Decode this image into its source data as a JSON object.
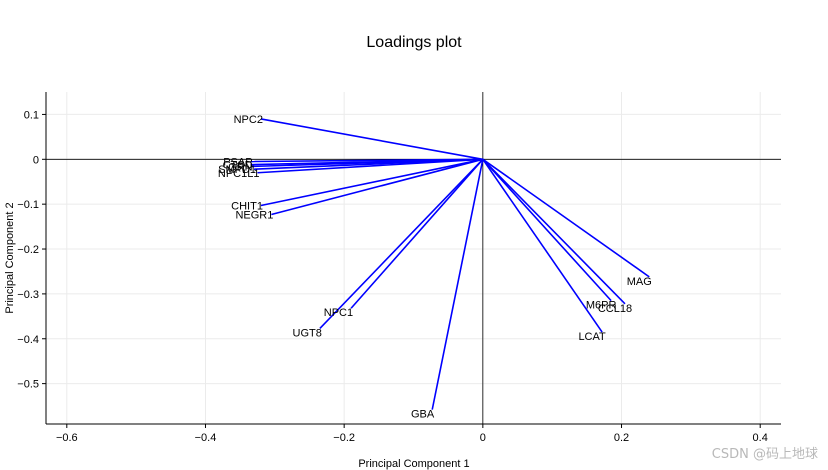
{
  "chart_data": {
    "type": "loadings",
    "title": "Loadings plot",
    "xlabel": "Principal Component 1",
    "ylabel": "Principal Component 2",
    "xlim": [
      -0.63,
      0.43
    ],
    "ylim": [
      -0.59,
      0.15
    ],
    "xticks": [
      -0.6,
      -0.4,
      -0.2,
      0,
      0.2,
      0.4
    ],
    "xtick_labels": [
      "−0.6",
      "−0.4",
      "−0.2",
      "0",
      "0.2",
      "0.4"
    ],
    "yticks": [
      0.1,
      0,
      -0.1,
      -0.2,
      -0.3,
      -0.4,
      -0.5
    ],
    "ytick_labels": [
      "0.1",
      "0",
      "−0.1",
      "−0.2",
      "−0.3",
      "−0.4",
      "−0.5"
    ],
    "grid": true,
    "color": "#0000ff",
    "vectors": [
      {
        "label": "NPC2",
        "x": -0.32,
        "y": 0.09
      },
      {
        "label": "PSAP",
        "x": -0.335,
        "y": -0.005
      },
      {
        "label": "CTSD",
        "x": -0.335,
        "y": -0.012
      },
      {
        "label": "GRN",
        "x": -0.335,
        "y": -0.016
      },
      {
        "label": "SMPD1",
        "x": -0.33,
        "y": -0.022
      },
      {
        "label": "NPC1L1",
        "x": -0.325,
        "y": -0.03
      },
      {
        "label": "CHIT1",
        "x": -0.32,
        "y": -0.103
      },
      {
        "label": "NEGR1",
        "x": -0.305,
        "y": -0.123
      },
      {
        "label": "NPC1",
        "x": -0.19,
        "y": -0.332
      },
      {
        "label": "UGT8",
        "x": -0.235,
        "y": -0.377
      },
      {
        "label": "GBA",
        "x": -0.073,
        "y": -0.558
      },
      {
        "label": "MAG",
        "x": 0.24,
        "y": -0.262
      },
      {
        "label": "CCL18",
        "x": 0.205,
        "y": -0.322
      },
      {
        "label": "M6PR",
        "x": 0.185,
        "y": -0.315
      },
      {
        "label": "LCAT",
        "x": 0.172,
        "y": -0.385
      }
    ]
  },
  "watermark": "CSDN @码上地球"
}
